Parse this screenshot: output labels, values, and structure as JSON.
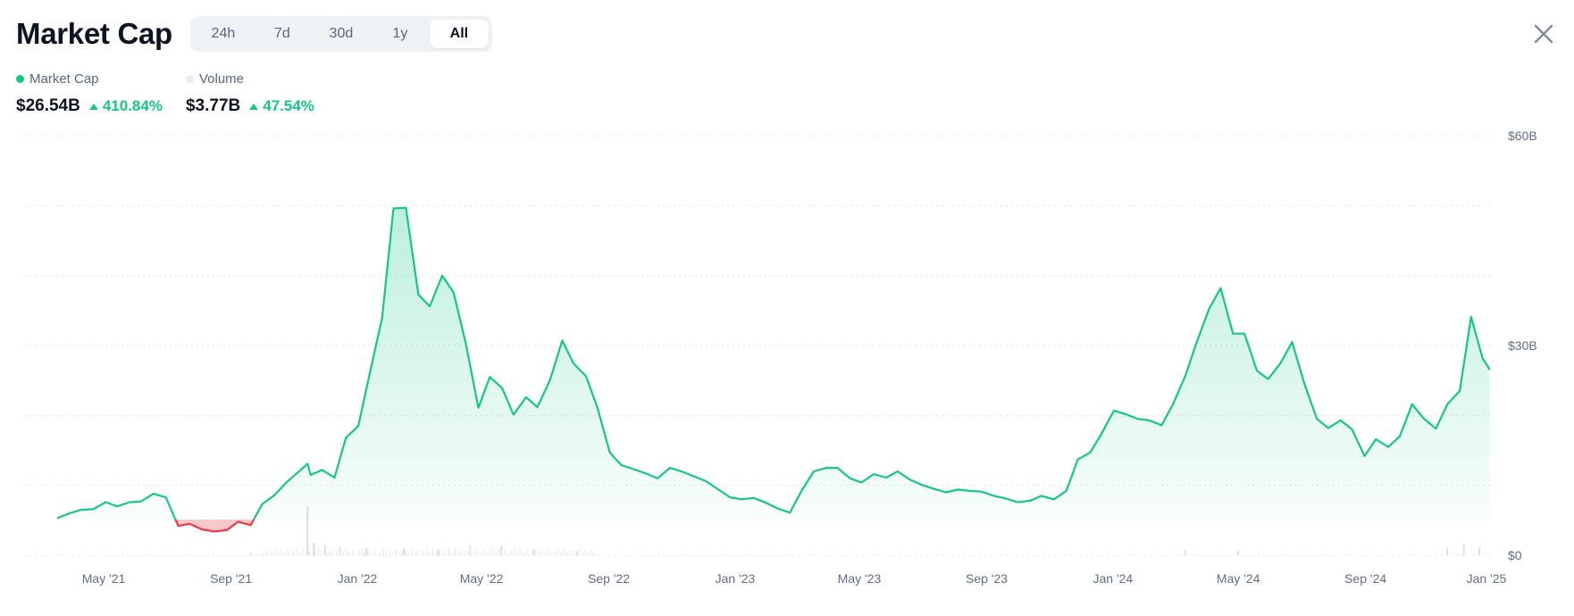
{
  "header": {
    "title": "Market Cap",
    "tabs": [
      "24h",
      "7d",
      "30d",
      "1y",
      "All"
    ],
    "active_tab": "All"
  },
  "legend": {
    "market_cap": {
      "label": "Market Cap",
      "value": "$26.54B",
      "change": "410.84%"
    },
    "volume": {
      "label": "Volume",
      "value": "$3.77B",
      "change": "47.54%"
    }
  },
  "colors": {
    "up": "#16c784",
    "down": "#ea3943",
    "volume_dot": "#e9ecf0",
    "grid": "#dfe3e8",
    "axis_text": "#616e85"
  },
  "icons": {
    "close": "close-icon"
  },
  "chart_data": {
    "type": "area",
    "y_unit": "USD",
    "ylim": [
      0,
      60000000000
    ],
    "y_ticks": [
      {
        "value": 0,
        "label": "$0"
      },
      {
        "value": 30000000000,
        "label": "$30B"
      },
      {
        "value": 60000000000,
        "label": "$60B"
      }
    ],
    "grid": true,
    "x_ticks": [
      "May '21",
      "Sep '21",
      "Jan '22",
      "May '22",
      "Sep '22",
      "Jan '23",
      "May '23",
      "Sep '23",
      "Jan '24",
      "May '24",
      "Sep '24",
      "Jan '25"
    ],
    "baseline": 5100000000,
    "series": [
      {
        "name": "Market Cap",
        "x": [
          "2021-03-17",
          "2021-03-29",
          "2021-04-09",
          "2021-04-21",
          "2021-05-03",
          "2021-05-14",
          "2021-05-26",
          "2021-06-06",
          "2021-06-18",
          "2021-06-30",
          "2021-07-12",
          "2021-07-23",
          "2021-08-04",
          "2021-08-16",
          "2021-08-28",
          "2021-09-08",
          "2021-09-20",
          "2021-10-01",
          "2021-10-13",
          "2021-10-25",
          "2021-11-05",
          "2021-11-14",
          "2021-11-17",
          "2021-11-28",
          "2021-12-10",
          "2021-12-21",
          "2022-01-02",
          "2022-01-13",
          "2022-01-25",
          "2022-02-05",
          "2022-02-17",
          "2022-03-01",
          "2022-03-12",
          "2022-03-24",
          "2022-04-04",
          "2022-04-16",
          "2022-04-28",
          "2022-05-09",
          "2022-05-21",
          "2022-06-01",
          "2022-06-13",
          "2022-06-24",
          "2022-07-06",
          "2022-07-18",
          "2022-07-29",
          "2022-08-10",
          "2022-08-21",
          "2022-09-02",
          "2022-09-13",
          "2022-09-25",
          "2022-10-07",
          "2022-10-18",
          "2022-10-30",
          "2022-11-10",
          "2022-11-22",
          "2022-12-04",
          "2022-12-15",
          "2022-12-27",
          "2023-01-07",
          "2023-01-19",
          "2023-01-31",
          "2023-02-11",
          "2023-02-23",
          "2023-03-06",
          "2023-03-18",
          "2023-03-30",
          "2023-04-10",
          "2023-04-22",
          "2023-05-03",
          "2023-05-15",
          "2023-05-27",
          "2023-06-07",
          "2023-06-19",
          "2023-06-30",
          "2023-07-12",
          "2023-07-24",
          "2023-08-04",
          "2023-08-16",
          "2023-08-27",
          "2023-09-08",
          "2023-09-20",
          "2023-10-01",
          "2023-10-13",
          "2023-10-24",
          "2023-11-05",
          "2023-11-17",
          "2023-11-28",
          "2023-12-10",
          "2023-12-21",
          "2024-01-02",
          "2024-01-13",
          "2024-01-25",
          "2024-02-05",
          "2024-02-17",
          "2024-02-28",
          "2024-03-11",
          "2024-03-22",
          "2024-04-03",
          "2024-04-14",
          "2024-04-26",
          "2024-05-07",
          "2024-05-19",
          "2024-05-30",
          "2024-06-11",
          "2024-06-22",
          "2024-07-04",
          "2024-07-16",
          "2024-07-27",
          "2024-08-08",
          "2024-08-19",
          "2024-08-31",
          "2024-09-11",
          "2024-09-23",
          "2024-10-04",
          "2024-10-16",
          "2024-10-27",
          "2024-11-08",
          "2024-11-19",
          "2024-12-01",
          "2024-12-12",
          "2024-12-23",
          "2024-12-30"
        ],
        "values": [
          5300000000,
          6000000000,
          6500000000,
          6600000000,
          7600000000,
          7000000000,
          7600000000,
          7700000000,
          8800000000,
          8300000000,
          4200000000,
          4500000000,
          3700000000,
          3400000000,
          3600000000,
          4800000000,
          4300000000,
          7300000000,
          8600000000,
          10500000000,
          11900000000,
          13100000000,
          11500000000,
          12200000000,
          11100000000,
          16800000000,
          18500000000,
          26000000000,
          34000000000,
          49600000000,
          49700000000,
          37300000000,
          35600000000,
          40000000000,
          37600000000,
          30200000000,
          21100000000,
          25500000000,
          23900000000,
          20100000000,
          22600000000,
          21200000000,
          25000000000,
          30700000000,
          27400000000,
          25600000000,
          21100000000,
          14700000000,
          12900000000,
          12300000000,
          11700000000,
          11000000000,
          12500000000,
          12000000000,
          11300000000,
          10600000000,
          9500000000,
          8300000000,
          8000000000,
          8200000000,
          7500000000,
          6700000000,
          6100000000,
          9200000000,
          12000000000,
          12500000000,
          12500000000,
          11000000000,
          10400000000,
          11600000000,
          11100000000,
          12000000000,
          10800000000,
          10100000000,
          9500000000,
          9000000000,
          9400000000,
          9200000000,
          9100000000,
          8500000000,
          8100000000,
          7600000000,
          7800000000,
          8500000000,
          8000000000,
          9200000000,
          13700000000,
          14700000000,
          17400000000,
          20700000000,
          20200000000,
          19500000000,
          19300000000,
          18600000000,
          21600000000,
          25700000000,
          30500000000,
          35300000000,
          38200000000,
          31700000000,
          31700000000,
          26400000000,
          25200000000,
          27500000000,
          30500000000,
          24500000000,
          19500000000,
          18200000000,
          19300000000,
          18000000000,
          14200000000,
          16600000000,
          15500000000,
          17000000000,
          21600000000,
          19600000000,
          18100000000,
          21600000000,
          23500000000,
          34100000000,
          28200000000,
          26540000000
        ]
      },
      {
        "name": "Volume",
        "note_values_approx": true,
        "x": [
          "2021-09-20",
          "2021-11-14",
          "2021-11-20",
          "2021-12-01",
          "2021-12-15",
          "2022-01-10",
          "2022-02-15",
          "2022-03-20",
          "2022-04-20",
          "2022-05-20",
          "2022-06-20",
          "2022-08-01",
          "2024-03-11",
          "2024-05-01",
          "2024-11-19",
          "2024-12-05",
          "2024-12-20"
        ],
        "values": [
          300000000,
          7300000000,
          1900000000,
          1500000000,
          1200000000,
          1100000000,
          1000000000,
          900000000,
          1500000000,
          1400000000,
          900000000,
          700000000,
          800000000,
          700000000,
          1100000000,
          1600000000,
          1200000000
        ]
      }
    ]
  }
}
